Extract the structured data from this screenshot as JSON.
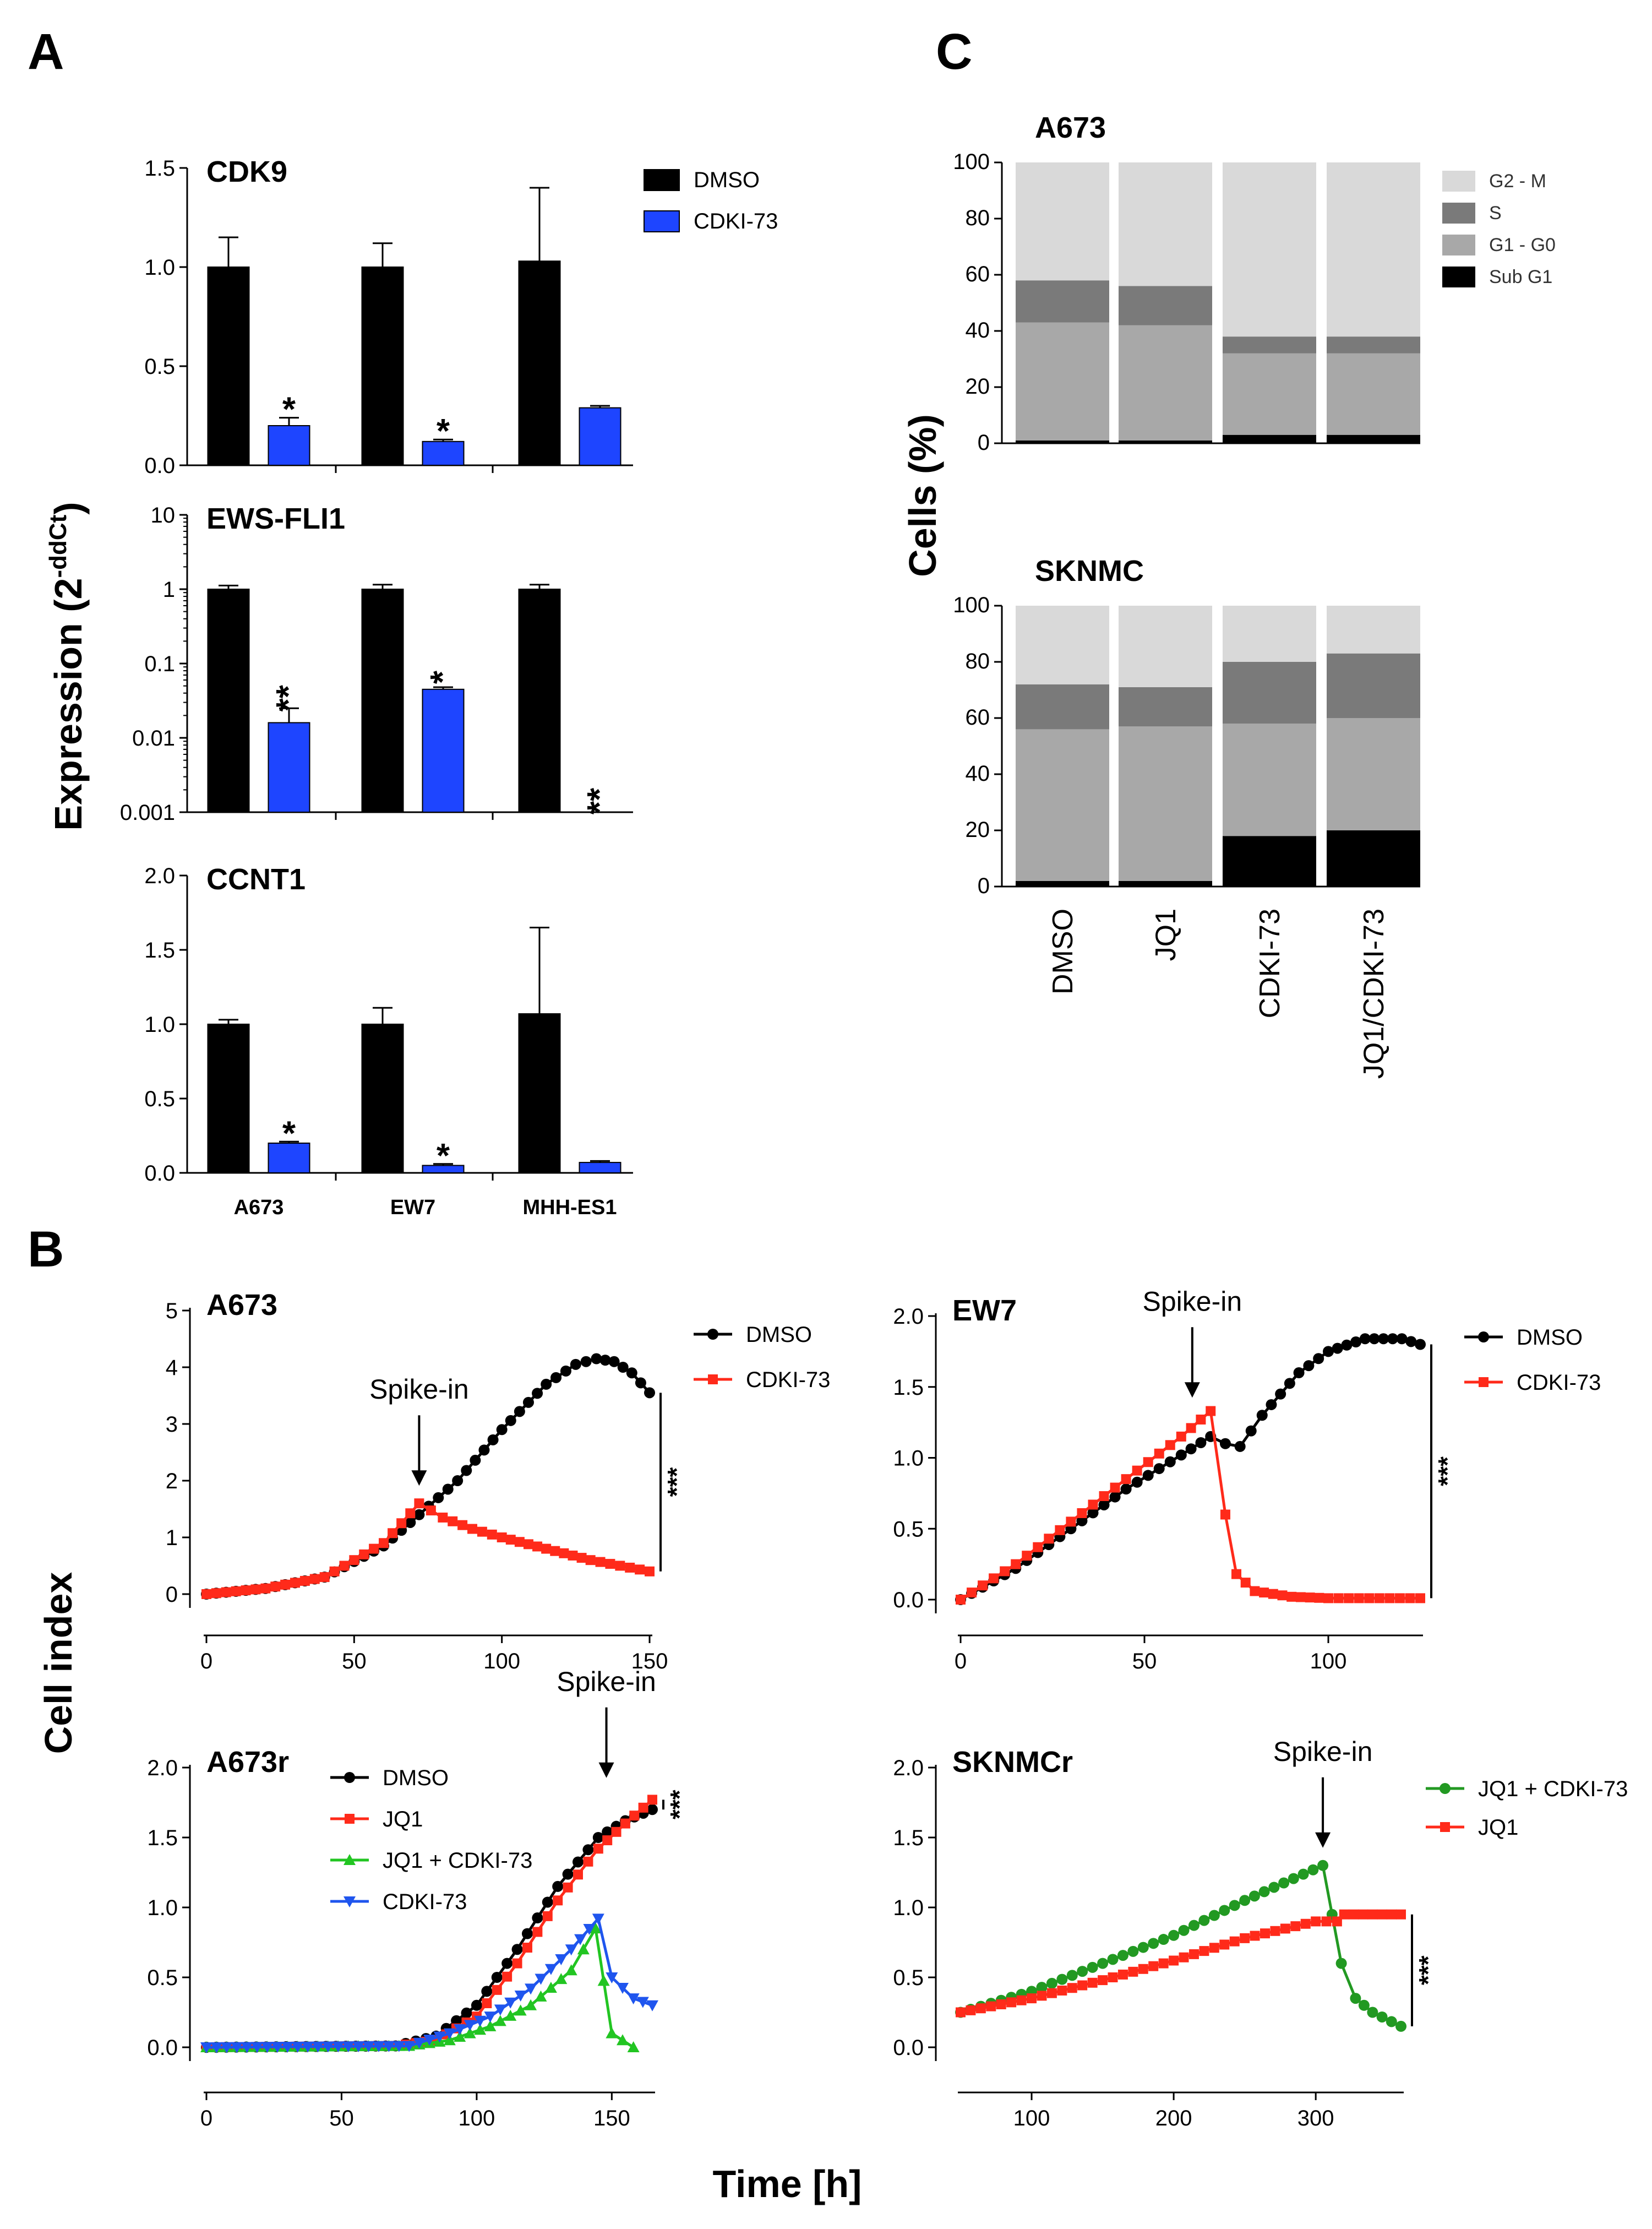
{
  "panel_labels": {
    "a": "A",
    "b": "B",
    "c": "C"
  },
  "shared_labels": {
    "expression_ylabel": "Expression (2",
    "expression_ylabel_sup": "-ddCt",
    "expression_ylabel_close": ")",
    "cells_ylabel": "Cells (%)",
    "cellindex_ylabel": "Cell index",
    "time_xlabel": "Time [h]"
  },
  "colors": {
    "dmso": "#000000",
    "cdki": "#1e45ff",
    "red": "#ff2a1a",
    "green": "#22a522",
    "blue": "#1f55ee",
    "g2m": "#d9d9d9",
    "s": "#7a7a7a",
    "g1g0": "#a8a8a8",
    "subg1": "#000000"
  },
  "chart_data": [
    {
      "id": "cdk9",
      "type": "bar",
      "title": "CDK9",
      "categories": [
        "A673",
        "EW7",
        "MHH-ES1"
      ],
      "yscale": "linear",
      "ylim": [
        0,
        1.5
      ],
      "yticks": [
        "0.0",
        "0.5",
        "1.0",
        "1.5"
      ],
      "series": [
        {
          "name": "DMSO",
          "values": [
            1.0,
            1.0,
            1.03
          ],
          "errors": [
            0.15,
            0.12,
            0.37
          ]
        },
        {
          "name": "CDKI-73",
          "values": [
            0.2,
            0.12,
            0.29
          ],
          "errors": [
            0.04,
            0.01,
            0.01
          ]
        }
      ],
      "significance": [
        {
          "category": "A673",
          "series": "CDKI-73",
          "label": "*"
        },
        {
          "category": "EW7",
          "series": "CDKI-73",
          "label": "*"
        }
      ],
      "legend": [
        "DMSO",
        "CDKI-73"
      ]
    },
    {
      "id": "ewsfli1",
      "type": "bar",
      "title": "EWS-FLI1",
      "categories": [
        "A673",
        "EW7",
        "MHH-ES1"
      ],
      "yscale": "log",
      "ylim": [
        0.001,
        10
      ],
      "yticks": [
        "0.001",
        "0.01",
        "0.1",
        "1",
        "10"
      ],
      "series": [
        {
          "name": "DMSO",
          "values": [
            1.0,
            1.0,
            1.0
          ],
          "errors": [
            0.12,
            0.15,
            0.15
          ]
        },
        {
          "name": "CDKI-73",
          "values": [
            0.016,
            0.045,
            0.0
          ],
          "errors": [
            0.009,
            0.003,
            0
          ]
        }
      ],
      "significance": [
        {
          "category": "A673",
          "series": "CDKI-73",
          "label": "**"
        },
        {
          "category": "EW7",
          "series": "CDKI-73",
          "label": "*"
        },
        {
          "category": "MHH-ES1",
          "series": "CDKI-73",
          "label": "**"
        }
      ]
    },
    {
      "id": "ccnt1",
      "type": "bar",
      "title": "CCNT1",
      "categories": [
        "A673",
        "EW7",
        "MHH-ES1"
      ],
      "yscale": "linear",
      "ylim": [
        0,
        2.0
      ],
      "yticks": [
        "0.0",
        "0.5",
        "1.0",
        "1.5",
        "2.0"
      ],
      "series": [
        {
          "name": "DMSO",
          "values": [
            1.0,
            1.0,
            1.07
          ],
          "errors": [
            0.03,
            0.11,
            0.58
          ]
        },
        {
          "name": "CDKI-73",
          "values": [
            0.2,
            0.05,
            0.07
          ],
          "errors": [
            0.01,
            0.01,
            0.01
          ]
        }
      ],
      "significance": [
        {
          "category": "A673",
          "series": "CDKI-73",
          "label": "*"
        },
        {
          "category": "EW7",
          "series": "CDKI-73",
          "label": "*"
        }
      ]
    },
    {
      "id": "cc_a673",
      "type": "bar",
      "stacked": true,
      "title": "A673",
      "categories": [
        "DMSO",
        "JQ1",
        "CDKI-73",
        "JQ1/CDKI-73"
      ],
      "ylim": [
        0,
        100
      ],
      "yticks": [
        "0",
        "20",
        "40",
        "60",
        "80",
        "100"
      ],
      "series": [
        {
          "name": "Sub G1",
          "values": [
            1,
            1,
            3,
            3
          ]
        },
        {
          "name": "G1 - G0",
          "values": [
            42,
            41,
            29,
            29
          ]
        },
        {
          "name": "S",
          "values": [
            15,
            14,
            6,
            6
          ]
        },
        {
          "name": "G2 - M",
          "values": [
            42,
            44,
            62,
            62
          ]
        }
      ],
      "legend": [
        "G2 - M",
        "S",
        "G1 - G0",
        "Sub G1"
      ]
    },
    {
      "id": "cc_sknmc",
      "type": "bar",
      "stacked": true,
      "title": "SKNMC",
      "categories": [
        "DMSO",
        "JQ1",
        "CDKI-73",
        "JQ1/CDKI-73"
      ],
      "ylim": [
        0,
        100
      ],
      "yticks": [
        "0",
        "20",
        "40",
        "60",
        "80",
        "100"
      ],
      "series": [
        {
          "name": "Sub G1",
          "values": [
            2,
            2,
            18,
            20
          ]
        },
        {
          "name": "G1 - G0",
          "values": [
            54,
            55,
            40,
            40
          ]
        },
        {
          "name": "S",
          "values": [
            16,
            14,
            22,
            23
          ]
        },
        {
          "name": "G2 - M",
          "values": [
            28,
            29,
            20,
            17
          ]
        }
      ]
    },
    {
      "id": "ci_a673",
      "type": "line",
      "title": "A673",
      "xlim": [
        0,
        150
      ],
      "xticks": [
        "0",
        "50",
        "100",
        "150"
      ],
      "ylim": [
        0,
        5
      ],
      "yticks": [
        "0",
        "1",
        "2",
        "3",
        "4",
        "5"
      ],
      "series": [
        {
          "name": "DMSO",
          "x": [
            0,
            20,
            40,
            60,
            72,
            85,
            100,
            115,
            125,
            132,
            138,
            144,
            150
          ],
          "y": [
            0,
            0.1,
            0.3,
            0.85,
            1.4,
            2.0,
            2.9,
            3.7,
            4.05,
            4.15,
            4.1,
            3.9,
            3.55
          ]
        },
        {
          "name": "CDKI-73",
          "x": [
            0,
            20,
            40,
            60,
            72,
            80,
            90,
            100,
            115,
            130,
            150
          ],
          "y": [
            0,
            0.1,
            0.3,
            0.9,
            1.6,
            1.35,
            1.15,
            1.0,
            0.8,
            0.6,
            0.4
          ]
        }
      ],
      "annotations": [
        "Spike-in",
        "***"
      ],
      "spike_x": 72,
      "spike_y": 1.6
    },
    {
      "id": "ci_ew7",
      "type": "line",
      "title": "EW7",
      "xlim": [
        0,
        125
      ],
      "xticks": [
        "0",
        "50",
        "100"
      ],
      "ylim": [
        0,
        2.0
      ],
      "yticks": [
        "0.0",
        "0.5",
        "1.0",
        "1.5",
        "2.0"
      ],
      "series": [
        {
          "name": "DMSO",
          "x": [
            0,
            15,
            30,
            45,
            60,
            68,
            72,
            76,
            82,
            92,
            100,
            110,
            120,
            125
          ],
          "y": [
            0,
            0.22,
            0.5,
            0.78,
            1.02,
            1.15,
            1.1,
            1.08,
            1.3,
            1.6,
            1.75,
            1.84,
            1.84,
            1.8
          ]
        },
        {
          "name": "CDKI-73",
          "x": [
            0,
            15,
            30,
            45,
            60,
            68,
            72,
            75,
            80,
            90,
            100,
            125
          ],
          "y": [
            0,
            0.25,
            0.55,
            0.85,
            1.15,
            1.33,
            0.6,
            0.18,
            0.06,
            0.02,
            0.01,
            0.01
          ]
        }
      ],
      "annotations": [
        "Spike-in",
        "***"
      ],
      "spike_x": 63,
      "spike_y": 1.3
    },
    {
      "id": "ci_a673r",
      "type": "line",
      "title": "A673r",
      "xlim": [
        0,
        165
      ],
      "xticks": [
        "0",
        "50",
        "100",
        "150"
      ],
      "ylim": [
        0,
        2.0
      ],
      "yticks": [
        "0.0",
        "0.5",
        "1.0",
        "1.5",
        "2.0"
      ],
      "series": [
        {
          "name": "DMSO",
          "x": [
            0,
            70,
            85,
            100,
            115,
            130,
            145,
            155,
            165
          ],
          "y": [
            0,
            0.01,
            0.08,
            0.3,
            0.7,
            1.15,
            1.5,
            1.62,
            1.7
          ]
        },
        {
          "name": "JQ1",
          "x": [
            0,
            70,
            85,
            100,
            115,
            130,
            145,
            155,
            165
          ],
          "y": [
            0,
            0.01,
            0.05,
            0.22,
            0.6,
            1.05,
            1.42,
            1.6,
            1.77
          ]
        },
        {
          "name": "JQ1 + CDKI-73",
          "x": [
            0,
            75,
            90,
            105,
            120,
            135,
            144,
            150,
            158
          ],
          "y": [
            0,
            0.01,
            0.05,
            0.15,
            0.3,
            0.55,
            0.85,
            0.1,
            0.0
          ]
        },
        {
          "name": "CDKI-73",
          "x": [
            0,
            75,
            90,
            105,
            120,
            135,
            145,
            150,
            158,
            165
          ],
          "y": [
            0,
            0.01,
            0.1,
            0.22,
            0.42,
            0.7,
            0.92,
            0.5,
            0.35,
            0.3
          ]
        }
      ],
      "annotations": [
        "Spike-in",
        "***"
      ],
      "spike_x": 148,
      "spike_y": 1.8
    },
    {
      "id": "ci_sknmcr",
      "type": "line",
      "title": "SKNMCr",
      "xlim": [
        50,
        360
      ],
      "xticks": [
        "100",
        "200",
        "300"
      ],
      "ylim": [
        0,
        2.0
      ],
      "yticks": [
        "0.0",
        "0.5",
        "1.0",
        "1.5",
        "2.0"
      ],
      "series": [
        {
          "name": "JQ1 + CDKI-73",
          "x": [
            50,
            100,
            150,
            200,
            250,
            305,
            318,
            328,
            340,
            360
          ],
          "y": [
            0.25,
            0.4,
            0.6,
            0.8,
            1.05,
            1.3,
            0.6,
            0.35,
            0.25,
            0.15
          ]
        },
        {
          "name": "JQ1",
          "x": [
            50,
            100,
            150,
            200,
            250,
            300,
            315,
            320,
            340,
            360
          ],
          "y": [
            0.25,
            0.35,
            0.48,
            0.62,
            0.78,
            0.9,
            0.9,
            0.95,
            0.95,
            0.95
          ]
        }
      ],
      "annotations": [
        "Spike-in",
        "***"
      ],
      "spike_x": 305,
      "spike_y": 1.3
    }
  ]
}
